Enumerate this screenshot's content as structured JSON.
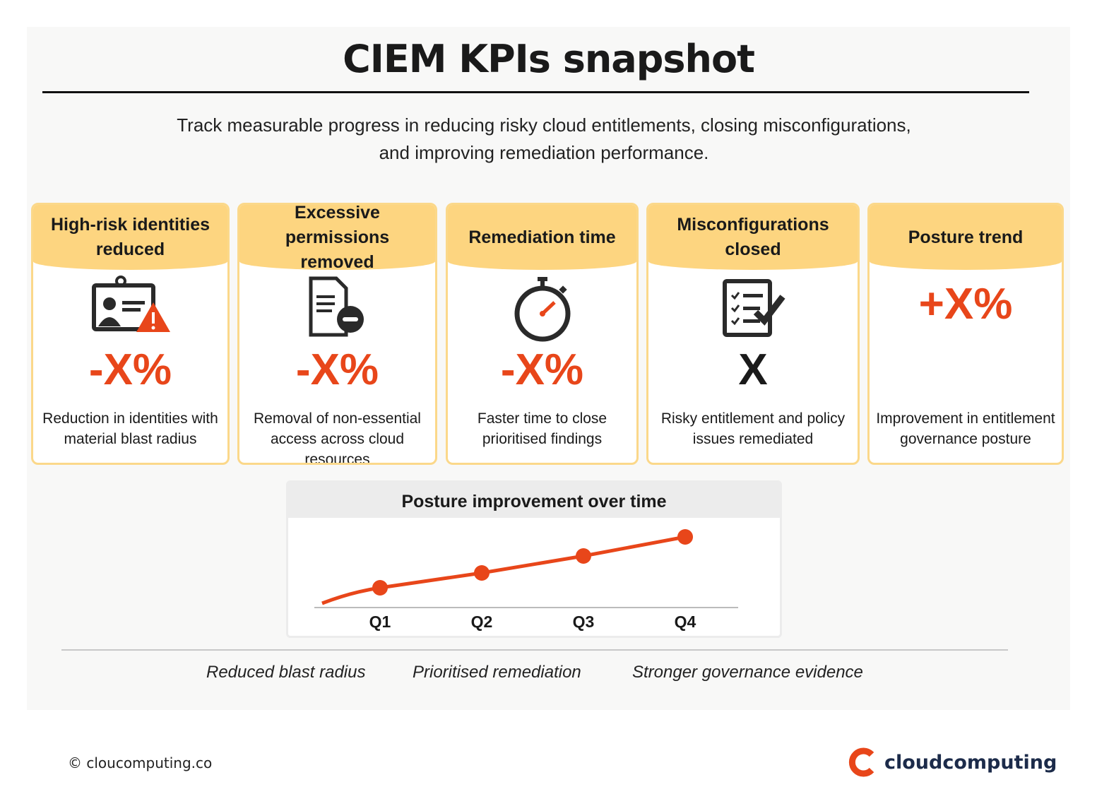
{
  "title": "CIEM KPIs snapshot",
  "subtitle_lines": [
    "Track measurable progress in reducing risky cloud entitlements, closing misconfigurations,",
    "and improving remediation performance."
  ],
  "accent_color": "#e8461a",
  "header_color": "#fdd580",
  "cards": [
    {
      "title": "High-risk identities reduced",
      "icon": "id-badge-warning-icon",
      "value": "-X%",
      "description": "Reduction in identities with material blast radius"
    },
    {
      "title": "Excessive permissions removed",
      "icon": "document-minus-icon",
      "value": "-X%",
      "description": "Removal of non-essential access across cloud resources"
    },
    {
      "title": "Remediation time",
      "icon": "stopwatch-icon",
      "value": "-X%",
      "description": "Faster time to close prioritised findings"
    },
    {
      "title": "Misconfigurations closed",
      "icon": "checklist-icon",
      "value": "X",
      "description": "Risky entitlement and policy issues remediated"
    },
    {
      "title": "Posture trend",
      "icon": "none",
      "value": "+X%",
      "description": "Improvement in entitlement governance posture"
    }
  ],
  "chart_data": {
    "type": "line",
    "title": "Posture improvement over time",
    "categories": [
      "Q1",
      "Q2",
      "Q3",
      "Q4"
    ],
    "values": [
      28,
      49,
      73,
      100
    ],
    "ylim": [
      0,
      100
    ],
    "grid": false,
    "color": "#e8461a"
  },
  "tags": [
    "Reduced blast radius",
    "Prioritised remediation",
    "Stronger governance evidence"
  ],
  "footer": {
    "copyright": "© cloucomputing.co",
    "brand": "cloudcomputing"
  }
}
